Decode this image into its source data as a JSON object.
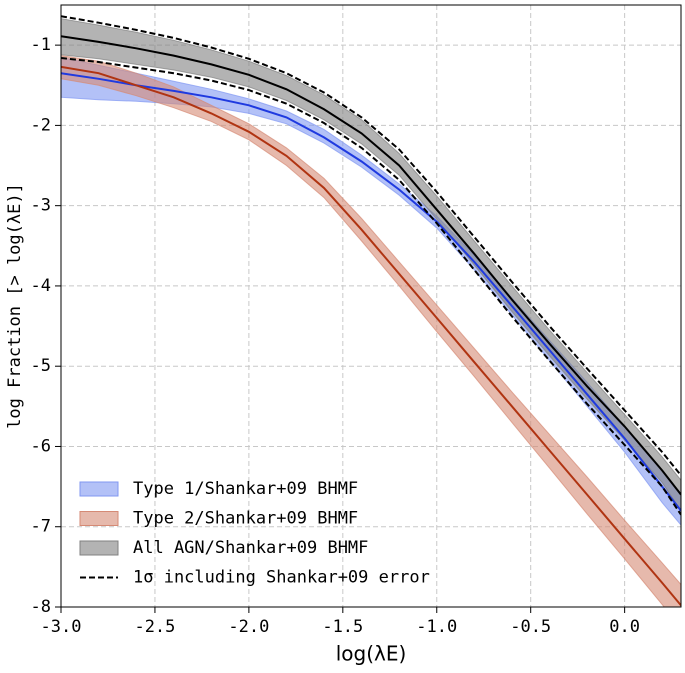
{
  "chart_data": {
    "type": "line",
    "xlabel": "log(λE)",
    "ylabel": "log Fraction [> log(λE)]",
    "x": [
      -3.0,
      -2.8,
      -2.6,
      -2.4,
      -2.2,
      -2.0,
      -1.8,
      -1.6,
      -1.4,
      -1.2,
      -1.0,
      -0.8,
      -0.6,
      -0.4,
      -0.2,
      0.0,
      0.2,
      0.3
    ],
    "series": [
      {
        "name": "Type 1/Shankar+09 BHMF",
        "color": "#1f3ae0",
        "band_color": "#8097f2",
        "values": [
          -1.35,
          -1.42,
          -1.5,
          -1.57,
          -1.65,
          -1.75,
          -1.9,
          -2.15,
          -2.45,
          -2.8,
          -3.2,
          -3.7,
          -4.25,
          -4.8,
          -5.35,
          -5.9,
          -6.5,
          -6.8
        ],
        "upper": [
          -1.15,
          -1.25,
          -1.35,
          -1.45,
          -1.55,
          -1.67,
          -1.82,
          -2.05,
          -2.37,
          -2.73,
          -3.13,
          -3.62,
          -4.15,
          -4.68,
          -5.2,
          -5.75,
          -6.3,
          -6.6
        ],
        "lower": [
          -1.65,
          -1.68,
          -1.7,
          -1.73,
          -1.77,
          -1.85,
          -1.98,
          -2.22,
          -2.52,
          -2.87,
          -3.28,
          -3.8,
          -4.36,
          -4.93,
          -5.5,
          -6.07,
          -6.7,
          -6.98
        ]
      },
      {
        "name": "Type 2/Shankar+09 BHMF",
        "color": "#b03412",
        "band_color": "#d58a75",
        "values": [
          -1.27,
          -1.35,
          -1.5,
          -1.65,
          -1.85,
          -2.08,
          -2.38,
          -2.78,
          -3.3,
          -3.85,
          -4.4,
          -4.95,
          -5.5,
          -6.05,
          -6.6,
          -7.15,
          -7.7,
          -7.98
        ],
        "upper": [
          -1.13,
          -1.2,
          -1.35,
          -1.52,
          -1.75,
          -1.98,
          -2.28,
          -2.66,
          -3.16,
          -3.7,
          -4.24,
          -4.78,
          -5.32,
          -5.85,
          -6.38,
          -6.92,
          -7.45,
          -7.72
        ],
        "lower": [
          -1.42,
          -1.5,
          -1.63,
          -1.78,
          -1.95,
          -2.18,
          -2.5,
          -2.9,
          -3.44,
          -4.0,
          -4.57,
          -5.13,
          -5.7,
          -6.27,
          -6.84,
          -7.4,
          -7.97,
          -8.25
        ]
      },
      {
        "name": "All AGN/Shankar+09 BHMF",
        "color": "#000000",
        "band_color": "#808080",
        "values": [
          -0.89,
          -0.96,
          -1.04,
          -1.13,
          -1.24,
          -1.37,
          -1.55,
          -1.8,
          -2.1,
          -2.5,
          -3.05,
          -3.6,
          -4.17,
          -4.72,
          -5.25,
          -5.75,
          -6.3,
          -6.6
        ],
        "upper": [
          -0.67,
          -0.75,
          -0.84,
          -0.94,
          -1.06,
          -1.2,
          -1.38,
          -1.62,
          -1.93,
          -2.35,
          -2.88,
          -3.44,
          -4.0,
          -4.55,
          -5.08,
          -5.6,
          -6.13,
          -6.42
        ],
        "lower": [
          -1.12,
          -1.17,
          -1.24,
          -1.31,
          -1.4,
          -1.52,
          -1.69,
          -1.93,
          -2.23,
          -2.62,
          -3.17,
          -3.74,
          -4.32,
          -4.87,
          -5.41,
          -5.92,
          -6.45,
          -6.8
        ]
      },
      {
        "name": "1σ including Shankar+09 error",
        "color": "#000000",
        "style": "dashed",
        "upper": [
          -0.64,
          -0.72,
          -0.81,
          -0.91,
          -1.03,
          -1.17,
          -1.35,
          -1.59,
          -1.9,
          -2.3,
          -2.83,
          -3.39,
          -3.95,
          -4.5,
          -5.03,
          -5.55,
          -6.07,
          -6.36
        ],
        "lower": [
          -1.16,
          -1.21,
          -1.28,
          -1.35,
          -1.44,
          -1.56,
          -1.73,
          -1.97,
          -2.28,
          -2.68,
          -3.22,
          -3.8,
          -4.38,
          -4.93,
          -5.47,
          -5.98,
          -6.5,
          -6.85
        ]
      }
    ],
    "xlim": [
      -3.0,
      0.3
    ],
    "xticks": [
      {
        "value": -3,
        "label": "-3.0"
      },
      {
        "value": -2.5,
        "label": "-2.5"
      },
      {
        "value": -2,
        "label": "-2.0"
      },
      {
        "value": -1.5,
        "label": "-1.5"
      },
      {
        "value": -1,
        "label": "-1.0"
      },
      {
        "value": -0.5,
        "label": "-0.5"
      },
      {
        "value": 0,
        "label": "0.0"
      }
    ],
    "ylim": [
      -8,
      -0.5
    ],
    "yticks": [
      -8,
      -7,
      -6,
      -5,
      -4,
      -3,
      -2,
      -1
    ],
    "grid": true,
    "legend": "lower left"
  }
}
